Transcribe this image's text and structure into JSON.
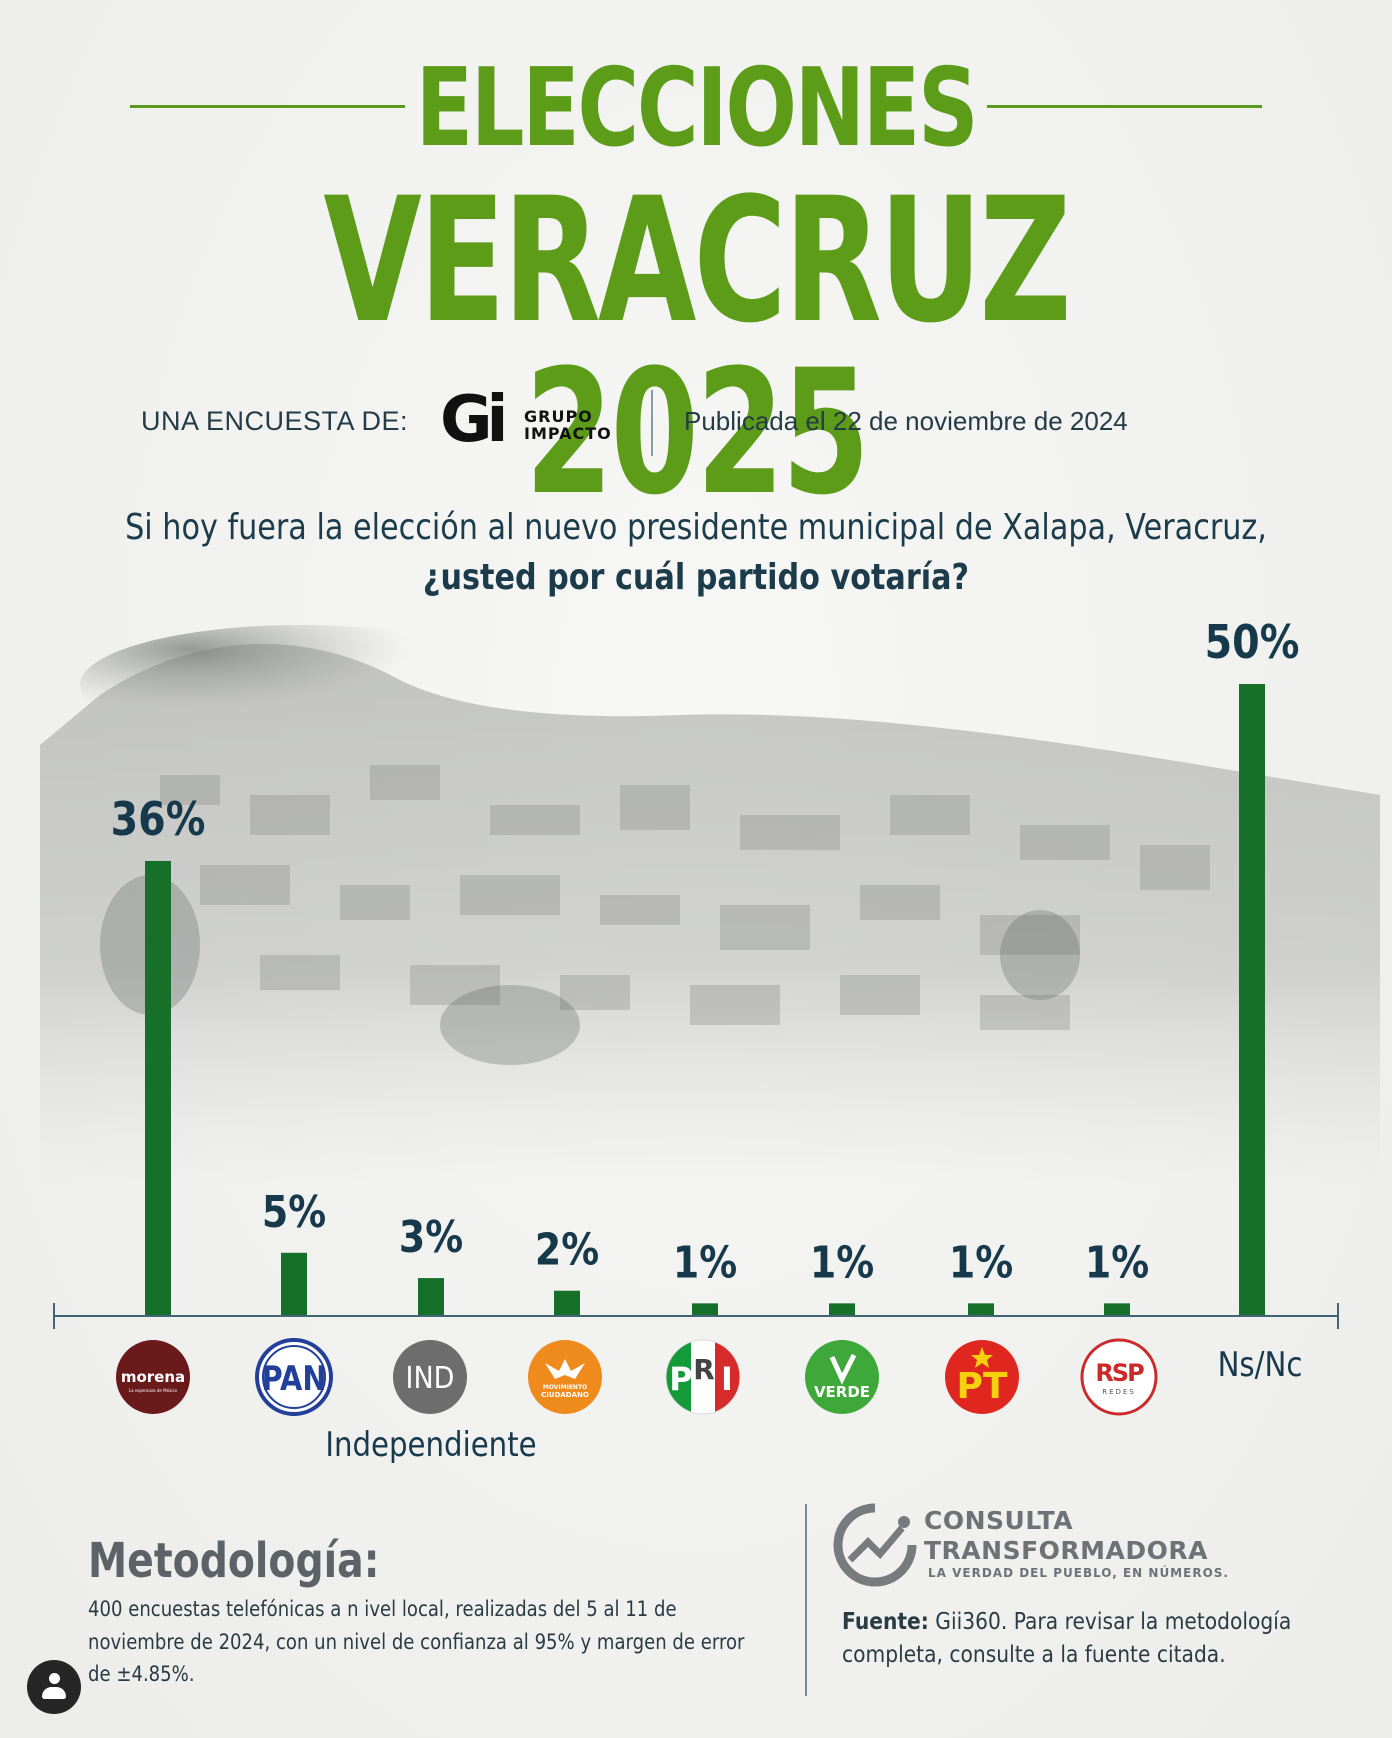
{
  "header": {
    "title_line1": "ELECCIONES",
    "title_line2": "VERACRUZ 2025",
    "byline": "UNA ENCUESTA DE:",
    "pollster_logo_mark": "Gi",
    "pollster_logo_line1": "GRUPO",
    "pollster_logo_line2": "IMPACTO",
    "published": "Publicada el 22 de noviembre de 2024"
  },
  "question": {
    "line1": "Si hoy fuera la elección al nuevo presidente municipal de Xalapa, Veracruz,",
    "line2": "¿usted por cuál partido votaría?"
  },
  "chart_data": {
    "type": "bar",
    "categories": [
      "morena",
      "PAN",
      "IND",
      "MOVIMIENTO CIUDADANO",
      "PRI",
      "VERDE",
      "PT",
      "RSP",
      "Ns/Nc"
    ],
    "values": [
      36,
      5,
      3,
      2,
      1,
      1,
      1,
      1,
      50
    ],
    "value_labels": [
      "36%",
      "5%",
      "3%",
      "2%",
      "1%",
      "1%",
      "1%",
      "1%",
      "50%"
    ],
    "ind_label": "Independiente",
    "logo_texts": {
      "morena_sub": "La esperanza de México",
      "mc_line1": "MOVIMIENTO",
      "mc_line2": "CIUDADANO",
      "pri_letters": [
        "P",
        "R",
        "I"
      ],
      "rsp_sub": "REDES"
    },
    "ylim": [
      0,
      50
    ],
    "colors": {
      "bar": "#17702a"
    }
  },
  "footer": {
    "methodology_title": "Metodología:",
    "methodology_text": "400 encuestas telefónicas a n ivel local, realizadas del 5 al 11 de noviembre de 2024, con un nivel de confianza al 95% y margen de error de ±4.85%.",
    "brand_line1": "CONSULTA",
    "brand_line2": "TRANSFORMADORA",
    "brand_tagline": "LA VERDAD DEL PUEBLO, EN NÚMEROS.",
    "source_label": "Fuente:",
    "source_text": "Gii360. Para revisar la metodología completa, consulte a la fuente citada."
  },
  "icons": {
    "profile": "user-avatar-icon",
    "brand": "consulta-transformadora-logo"
  }
}
